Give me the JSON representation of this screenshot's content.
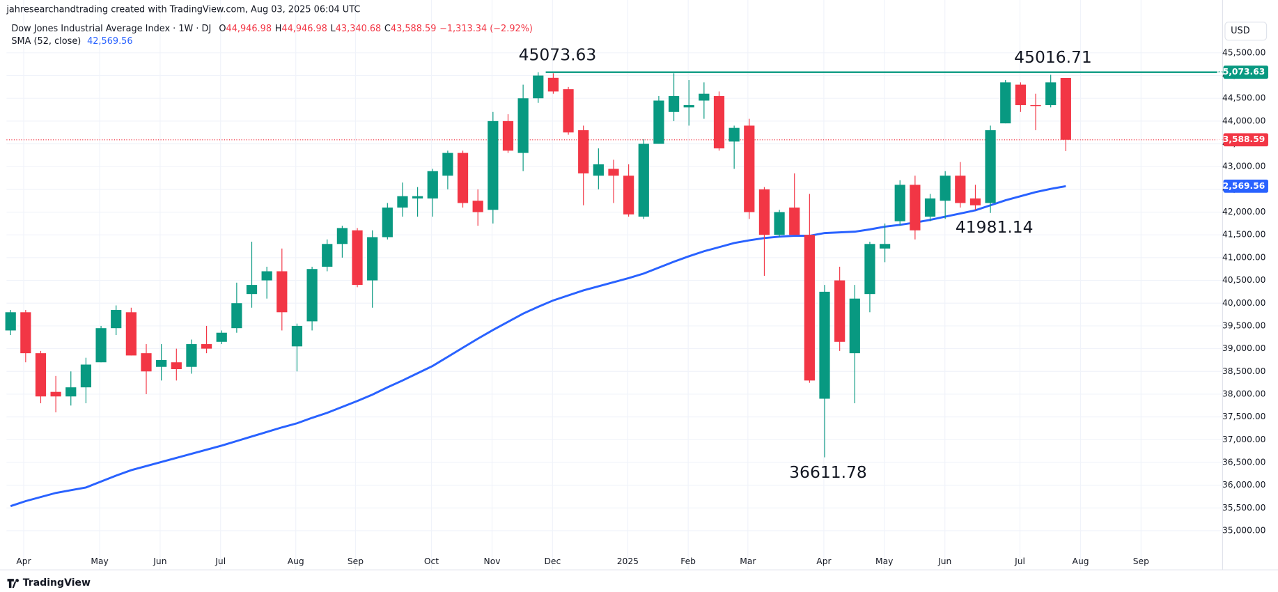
{
  "header": "jahresearchandtrading created with TradingView.com, Aug 03, 2025 06:04 UTC",
  "footer": "TradingView",
  "chart_data": {
    "type": "candlestick",
    "title": "Dow Jones Industrial Average Index · 1W · DJ",
    "ohlc_legend": [
      {
        "key": "O",
        "value": "44,946.98"
      },
      {
        "key": "H",
        "value": "44,946.98"
      },
      {
        "key": "L",
        "value": "43,340.68"
      },
      {
        "key": "C",
        "value": "43,588.59"
      }
    ],
    "change": "−1,313.34 (−2.92%)",
    "currency": "USD",
    "up_color": "#089981",
    "down_color": "#f23645",
    "open": [
      39400,
      39800,
      38900,
      38050,
      37950,
      38150,
      38700,
      39450,
      39800,
      38900,
      38600,
      38700,
      38600,
      39100,
      39150,
      39450,
      40200,
      40500,
      40700,
      39050,
      39600,
      40800,
      41300,
      41600,
      40500,
      41450,
      42100,
      42300,
      42300,
      42800,
      43300,
      42250,
      42050,
      44000,
      43300,
      44500,
      44950,
      44700,
      43800,
      42800,
      42950,
      42800,
      41900,
      43500,
      44200,
      44300,
      44450,
      44550,
      43550,
      43900,
      42500,
      41500,
      42100,
      41500,
      37900,
      40500,
      38900,
      40200,
      41200,
      41800,
      42600,
      41900,
      42250,
      42800,
      42300,
      42200,
      43950,
      44800,
      44350,
      44350,
      44946.98
    ],
    "high": [
      39850,
      39850,
      38950,
      38400,
      38500,
      38800,
      39500,
      39950,
      39900,
      39100,
      39100,
      39000,
      39200,
      39500,
      39400,
      40450,
      41350,
      40800,
      41200,
      39550,
      40800,
      41400,
      41700,
      41650,
      41600,
      42200,
      42650,
      42550,
      42950,
      43350,
      43350,
      42500,
      44200,
      44150,
      44800,
      45073.63,
      45050,
      44750,
      43900,
      43400,
      43150,
      43050,
      43600,
      44550,
      45050,
      44900,
      44850,
      44650,
      43900,
      44050,
      42550,
      42050,
      42850,
      42400,
      40400,
      40800,
      40400,
      41350,
      41750,
      42700,
      42800,
      42400,
      42900,
      43100,
      42600,
      43900,
      44900,
      44850,
      44600,
      45016.71,
      44946.98
    ],
    "low": [
      39300,
      38700,
      37800,
      37600,
      37750,
      37800,
      38700,
      39300,
      38850,
      38000,
      38300,
      38300,
      38450,
      38900,
      39100,
      39350,
      39900,
      40100,
      39400,
      38500,
      39400,
      40700,
      41000,
      40350,
      39900,
      41400,
      41900,
      41900,
      41900,
      42500,
      42100,
      41700,
      41750,
      43300,
      42900,
      44400,
      44600,
      43700,
      42150,
      42500,
      42200,
      41900,
      41850,
      43500,
      44000,
      43900,
      44050,
      43350,
      42950,
      41850,
      40600,
      41450,
      41500,
      38250,
      36611.78,
      38950,
      37800,
      39800,
      40900,
      41700,
      41400,
      41800,
      41850,
      42100,
      42050,
      41981.14,
      43950,
      44200,
      43800,
      44300,
      43340.68
    ],
    "close": [
      39800,
      38900,
      37950,
      37950,
      38150,
      38650,
      39450,
      39850,
      38850,
      38500,
      38750,
      38550,
      39100,
      39000,
      39350,
      40000,
      40400,
      40700,
      39800,
      39500,
      40750,
      41300,
      41650,
      40400,
      41450,
      42100,
      42350,
      42350,
      42900,
      43300,
      42200,
      42000,
      44000,
      43350,
      44500,
      45000,
      44650,
      43750,
      42850,
      43050,
      42800,
      41950,
      43500,
      44450,
      44550,
      44350,
      44600,
      43400,
      43850,
      42000,
      41500,
      42000,
      41500,
      38300,
      40250,
      39150,
      40100,
      41300,
      41300,
      42600,
      41600,
      42300,
      42800,
      42200,
      42150,
      43800,
      44850,
      44350,
      44330,
      44850,
      43588.59
    ],
    "series": [
      {
        "name": "SMA (52, close)",
        "color": "#2962ff",
        "value_label": "42,569.56",
        "values": [
          35540,
          35650,
          35740,
          35830,
          35890,
          35950,
          36080,
          36210,
          36330,
          36420,
          36510,
          36600,
          36690,
          36780,
          36870,
          36970,
          37070,
          37170,
          37270,
          37360,
          37480,
          37590,
          37720,
          37850,
          37990,
          38150,
          38300,
          38460,
          38620,
          38820,
          39020,
          39220,
          39410,
          39590,
          39770,
          39920,
          40060,
          40170,
          40280,
          40370,
          40460,
          40550,
          40650,
          40780,
          40910,
          41030,
          41140,
          41230,
          41320,
          41380,
          41430,
          41460,
          41480,
          41480,
          41540,
          41555,
          41570,
          41620,
          41680,
          41720,
          41770,
          41830,
          41900,
          41970,
          42040,
          42150,
          42260,
          42350,
          42440,
          42510,
          42569.56
        ]
      }
    ],
    "last_label": "43,588.59",
    "hline": {
      "value": 45073.63,
      "label": "45,073.63",
      "color": "#089981"
    },
    "annotations": [
      45073.63,
      45016.71,
      41981.14,
      36611.78
    ],
    "grid": true,
    "xlim": [
      -0.27,
      80.4
    ],
    "xticks": [
      {
        "value": 0.87,
        "label": "Apr"
      },
      {
        "value": 5.91,
        "label": "May"
      },
      {
        "value": 9.92,
        "label": "Jun"
      },
      {
        "value": 13.93,
        "label": "Jul"
      },
      {
        "value": 18.92,
        "label": "Aug"
      },
      {
        "value": 22.88,
        "label": "Sep"
      },
      {
        "value": 27.92,
        "label": "Oct"
      },
      {
        "value": 31.94,
        "label": "Nov"
      },
      {
        "value": 35.95,
        "label": "Dec"
      },
      {
        "value": 40.94,
        "label": "2025"
      },
      {
        "value": 44.95,
        "label": "Feb"
      },
      {
        "value": 48.91,
        "label": "Mar"
      },
      {
        "value": 53.95,
        "label": "Apr"
      },
      {
        "value": 57.96,
        "label": "May"
      },
      {
        "value": 61.98,
        "label": "Jun"
      },
      {
        "value": 66.96,
        "label": "Jul"
      },
      {
        "value": 70.98,
        "label": "Aug"
      },
      {
        "value": 74.99,
        "label": "Sep"
      }
    ],
    "ylim": [
      34500,
      46300
    ],
    "yticks": [
      {
        "value": 35000,
        "label": "35,000.00"
      },
      {
        "value": 35500,
        "label": "35,500.00"
      },
      {
        "value": 36000,
        "label": "36,000.00"
      },
      {
        "value": 36500,
        "label": "36,500.00"
      },
      {
        "value": 37000,
        "label": "37,000.00"
      },
      {
        "value": 37500,
        "label": "37,500.00"
      },
      {
        "value": 38000,
        "label": "38,000.00"
      },
      {
        "value": 38500,
        "label": "38,500.00"
      },
      {
        "value": 39000,
        "label": "39,000.00"
      },
      {
        "value": 39500,
        "label": "39,500.00"
      },
      {
        "value": 40000,
        "label": "40,000.00"
      },
      {
        "value": 40500,
        "label": "40,500.00"
      },
      {
        "value": 41000,
        "label": "41,000.00"
      },
      {
        "value": 41500,
        "label": "41,500.00"
      },
      {
        "value": 42000,
        "label": "42,000.00"
      },
      {
        "value": 42500,
        "label": "42,500.00"
      },
      {
        "value": 43000,
        "label": "43,000.00"
      },
      {
        "value": 43500,
        "label": "43,500.00"
      },
      {
        "value": 44000,
        "label": "44,000.00"
      },
      {
        "value": 44500,
        "label": "44,500.00"
      },
      {
        "value": 45000,
        "label": "45,000.00"
      },
      {
        "value": 45500,
        "label": "45,500.00"
      }
    ]
  }
}
